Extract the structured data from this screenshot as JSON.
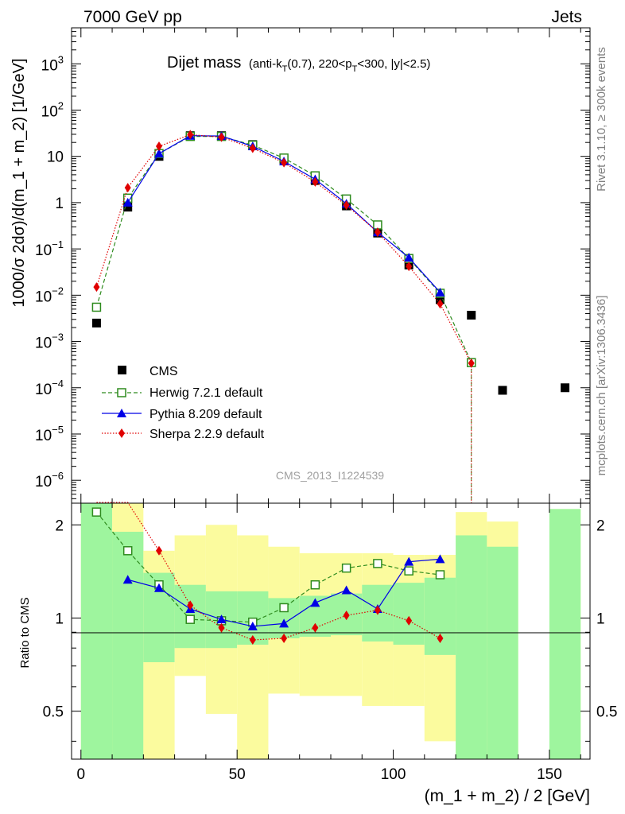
{
  "header": {
    "left": "7000 GeV pp",
    "right": "Jets"
  },
  "title": {
    "main": "Dijet mass",
    "detail_pre": "(anti-k",
    "detail_sub1": "T",
    "detail_mid": "(0.7), 220<p",
    "detail_sub2": "T",
    "detail_post": "<300, |y|<2.5)"
  },
  "watermark": "CMS_2013_I1224539",
  "side_labels": {
    "rivet": "Rivet 3.1.10, ≥ 300k events",
    "mcplots": "mcplots.cern.ch [arXiv:1306.3436]"
  },
  "axis_labels": {
    "y_main": "1000/σ 2dσ)/d(m_1 + m_2) [1/GeV]",
    "y_ratio": "Ratio to CMS",
    "x": "(m_1 + m_2) / 2 [GeV]"
  },
  "colors": {
    "cms": "#000000",
    "herwig": "#2e8b1e",
    "pythia": "#0000e6",
    "sherpa": "#e00000",
    "band_inner": "#9ef59e",
    "band_outer": "#fbfb9e"
  },
  "chart_data": {
    "type": "line",
    "xlim": [
      -3,
      163
    ],
    "main_ylim_log": [
      3.2e-07,
      6000
    ],
    "ratio_ylim": [
      0.35,
      2.35
    ],
    "x_ticks": [
      0,
      50,
      100,
      150
    ],
    "y_ticks_main": [
      "10^{-6}",
      "10^{-5}",
      "10^{-4}",
      "10^{-3}",
      "10^{-2}",
      "10^{-1}",
      "1",
      "10",
      "10^{2}",
      "10^{3}"
    ],
    "y_ticks_ratio": [
      "0.5",
      "1",
      "2"
    ],
    "series": [
      {
        "name": "CMS",
        "marker": "square",
        "x": [
          5,
          15,
          25,
          35,
          45,
          55,
          65,
          75,
          85,
          95,
          105,
          115,
          125,
          135,
          155
        ],
        "y": [
          0.0025,
          0.8,
          10,
          28,
          28,
          18,
          8.5,
          3.0,
          0.85,
          0.22,
          0.045,
          0.008,
          0.0037,
          8.8e-05,
          0.0001
        ]
      },
      {
        "name": "Herwig 7.2.1 default",
        "marker": "open-square",
        "x": [
          5,
          15,
          25,
          35,
          45,
          55,
          65,
          75,
          85,
          95,
          105,
          115,
          125
        ],
        "y": [
          0.0055,
          1.25,
          11.5,
          27,
          27,
          17.5,
          9.2,
          3.8,
          1.2,
          0.33,
          0.062,
          0.011,
          0.00035
        ]
      },
      {
        "name": "Pythia 8.209 default",
        "marker": "triangle",
        "x": [
          15,
          25,
          35,
          45,
          55,
          65,
          75,
          85,
          95,
          105,
          115
        ],
        "y": [
          1.0,
          11.5,
          28,
          27.5,
          16.5,
          7.8,
          3.2,
          0.95,
          0.23,
          0.065,
          0.0115
        ]
      },
      {
        "name": "Sherpa 2.2.9 default",
        "marker": "diamond",
        "x": [
          5,
          15,
          25,
          35,
          45,
          55,
          65,
          75,
          85,
          95,
          105,
          115,
          125
        ],
        "y": [
          0.015,
          2.1,
          16.5,
          29.5,
          26,
          15,
          7.3,
          2.8,
          0.88,
          0.23,
          0.042,
          0.0065,
          0.00034
        ]
      }
    ],
    "ratio_series": [
      {
        "name": "Herwig 7.2.1 default",
        "x": [
          5,
          15,
          25,
          35,
          45,
          55,
          65,
          75,
          85,
          95,
          105,
          115
        ],
        "y": [
          2.2,
          1.65,
          1.28,
          0.99,
          0.98,
          0.97,
          1.08,
          1.28,
          1.45,
          1.5,
          1.42,
          1.38
        ]
      },
      {
        "name": "Pythia 8.209 default",
        "x": [
          15,
          25,
          35,
          45,
          55,
          65,
          75,
          85,
          95,
          105,
          115
        ],
        "y": [
          1.33,
          1.25,
          1.07,
          0.99,
          0.94,
          0.96,
          1.12,
          1.23,
          1.07,
          1.52,
          1.55
        ]
      },
      {
        "name": "Sherpa 2.2.9 default",
        "x": [
          5,
          15,
          25,
          35,
          45,
          55,
          65,
          75,
          85,
          95,
          105,
          115
        ],
        "y": [
          2.8,
          2.6,
          1.65,
          1.1,
          0.93,
          0.85,
          0.86,
          0.93,
          1.02,
          1.06,
          0.98,
          0.86
        ]
      }
    ],
    "cms_uncertainty_bands": [
      {
        "x": [
          0,
          10
        ],
        "inner": [
          0.35,
          2.35
        ],
        "outer": [
          0.35,
          2.35
        ]
      },
      {
        "x": [
          10,
          20
        ],
        "inner": [
          0.35,
          1.9
        ],
        "outer": [
          0.35,
          2.35
        ]
      },
      {
        "x": [
          20,
          30
        ],
        "inner": [
          0.72,
          1.4
        ],
        "outer": [
          0.35,
          1.65
        ]
      },
      {
        "x": [
          30,
          40
        ],
        "inner": [
          0.8,
          1.28
        ],
        "outer": [
          0.65,
          1.85
        ]
      },
      {
        "x": [
          40,
          50
        ],
        "inner": [
          0.8,
          1.22
        ],
        "outer": [
          0.49,
          2.0
        ]
      },
      {
        "x": [
          50,
          60
        ],
        "inner": [
          0.82,
          1.22
        ],
        "outer": [
          0.35,
          1.85
        ]
      },
      {
        "x": [
          60,
          70
        ],
        "inner": [
          0.86,
          1.16
        ],
        "outer": [
          0.57,
          1.7
        ]
      },
      {
        "x": [
          70,
          80
        ],
        "inner": [
          0.87,
          1.18
        ],
        "outer": [
          0.56,
          1.62
        ]
      },
      {
        "x": [
          80,
          90
        ],
        "inner": [
          0.88,
          1.2
        ],
        "outer": [
          0.56,
          1.62
        ]
      },
      {
        "x": [
          90,
          100
        ],
        "inner": [
          0.84,
          1.28
        ],
        "outer": [
          0.52,
          1.62
        ]
      },
      {
        "x": [
          100,
          110
        ],
        "inner": [
          0.82,
          1.3
        ],
        "outer": [
          0.52,
          1.6
        ]
      },
      {
        "x": [
          110,
          120
        ],
        "inner": [
          0.76,
          1.35
        ],
        "outer": [
          0.4,
          1.6
        ]
      },
      {
        "x": [
          120,
          130
        ],
        "inner": [
          0.35,
          1.85
        ],
        "outer": [
          0.35,
          2.2
        ]
      },
      {
        "x": [
          130,
          140
        ],
        "inner": [
          0.35,
          1.7
        ],
        "outer": [
          0.35,
          2.05
        ]
      },
      {
        "x": [
          150,
          160
        ],
        "inner": [
          0.35,
          2.25
        ],
        "outer": [
          0.35,
          2.25
        ]
      }
    ],
    "legend_placement": "center-left"
  }
}
